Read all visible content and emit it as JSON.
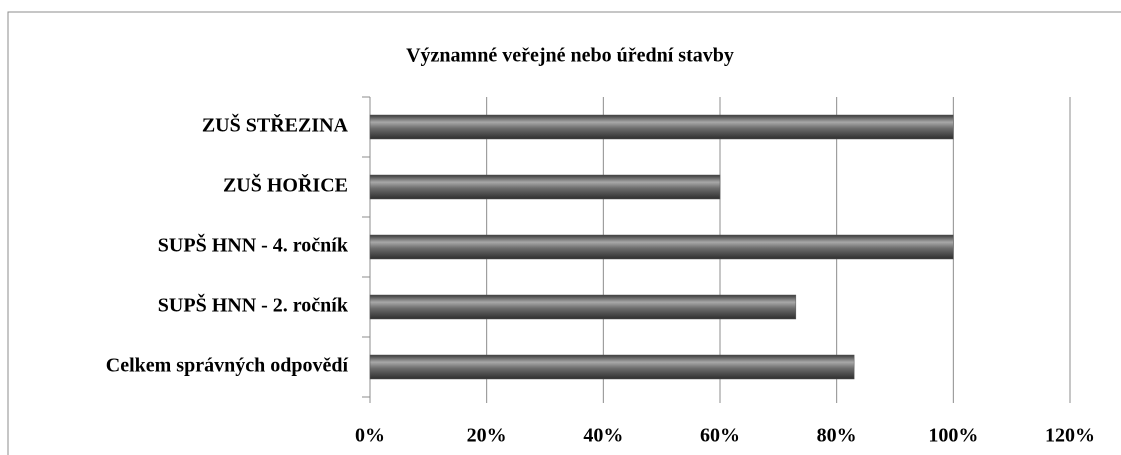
{
  "chart_data": {
    "type": "barh",
    "title": "Významné veřejné nebo úřední stavby",
    "categories": [
      "ZUŠ STŘEZINA",
      "ZUŠ HOŘICE",
      "SUPŠ HNN - 4. ročník",
      "SUPŠ HNN - 2. ročník",
      "Celkem správných odpovědí"
    ],
    "values": [
      100,
      60,
      100,
      73,
      83
    ],
    "color": "#595959",
    "xlim": [
      0,
      120
    ],
    "xticks": [
      {
        "value": 0,
        "label": "0%"
      },
      {
        "value": 20,
        "label": "20%"
      },
      {
        "value": 40,
        "label": "40%"
      },
      {
        "value": 60,
        "label": "60%"
      },
      {
        "value": 80,
        "label": "80%"
      },
      {
        "value": 100,
        "label": "100%"
      },
      {
        "value": 120,
        "label": "120%"
      }
    ],
    "grid": true
  }
}
